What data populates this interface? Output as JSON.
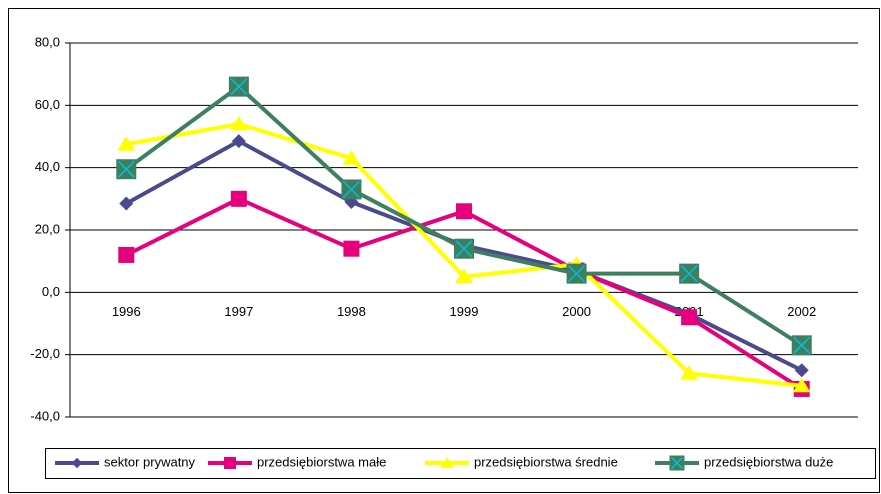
{
  "chart_data": {
    "type": "line",
    "categories": [
      "1996",
      "1997",
      "1998",
      "1999",
      "2000",
      "2001",
      "2002"
    ],
    "series": [
      {
        "name": "sektor prywatny",
        "color": "#4b4a8c",
        "marker": "diamond",
        "values": [
          28.5,
          48.5,
          29,
          15,
          7,
          -7,
          -25
        ]
      },
      {
        "name": "przedsiębiorstwa małe",
        "color": "#e6007e",
        "marker": "square",
        "values": [
          12,
          30,
          14,
          26,
          7,
          -8,
          -31
        ]
      },
      {
        "name": "przedsiębiorstwa średnie",
        "color": "#ffff00",
        "marker": "triangle",
        "values": [
          47.5,
          54,
          43,
          5,
          9,
          -26,
          -30
        ]
      },
      {
        "name": "przedsiębiorstwa duże",
        "color": "#3d7f5e",
        "marker": "square-x",
        "values": [
          39.5,
          66,
          33,
          14,
          6,
          6,
          -17
        ]
      }
    ],
    "ylim": [
      -40,
      80
    ],
    "yticks": [
      {
        "value": -40,
        "label": "-40,0"
      },
      {
        "value": -20,
        "label": "-20,0"
      },
      {
        "value": 0,
        "label": "0,0"
      },
      {
        "value": 20,
        "label": "20,0"
      },
      {
        "value": 40,
        "label": "40,0"
      },
      {
        "value": 60,
        "label": "60,0"
      },
      {
        "value": 80,
        "label": "80,0"
      }
    ],
    "grid": true,
    "legend": "bottom"
  }
}
